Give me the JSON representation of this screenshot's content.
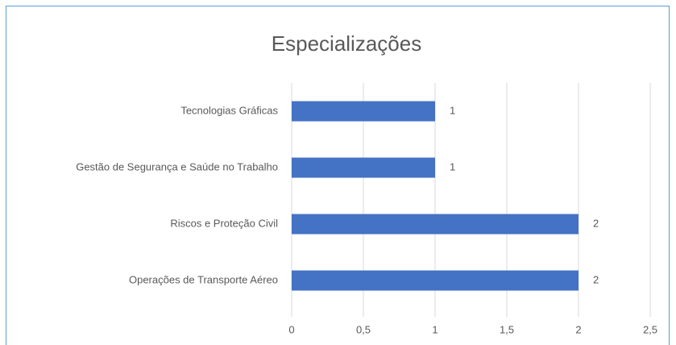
{
  "chart_data": {
    "type": "barh",
    "title": "Especializações",
    "categories": [
      "Tecnologias Gráficas",
      "Gestão de Segurança e Saúde no Trabalho",
      "Riscos e Proteção Civil",
      "Operações de Transporte Aéreo"
    ],
    "values": [
      1,
      1,
      2,
      2
    ],
    "color": "#4472c4",
    "xlim": [
      0,
      2.5
    ],
    "xticks": [
      0,
      {
        "value": 0.5,
        "label": "0,5"
      },
      1,
      {
        "value": 1.5,
        "label": "1,5"
      },
      2,
      {
        "value": 2.5,
        "label": "2,5"
      }
    ],
    "grid": true
  }
}
